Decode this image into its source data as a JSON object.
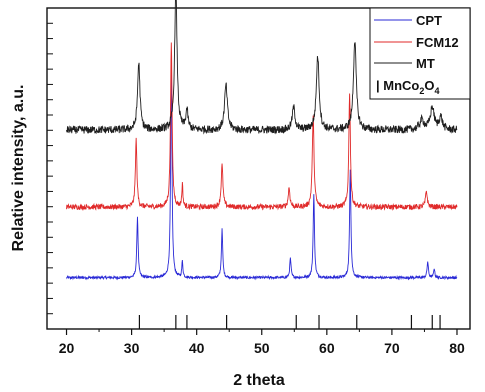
{
  "chart_data": {
    "type": "line",
    "title": "",
    "xlabel": "2 theta",
    "ylabel": "Relative intensity, a.u.",
    "xlim": [
      17,
      82
    ],
    "x_ticks": [
      20,
      30,
      40,
      50,
      60,
      70,
      80
    ],
    "y_ticks_labeled": false,
    "grid": false,
    "legend_placement": "top-right",
    "series": [
      {
        "name": "CPT",
        "color": "#2a2ad6",
        "baseline": 0.16,
        "noise": 0.004,
        "peaks": [
          [
            30.9,
            0.19,
            0.12
          ],
          [
            36.1,
            0.68,
            0.12
          ],
          [
            37.8,
            0.05,
            0.1
          ],
          [
            43.9,
            0.15,
            0.12
          ],
          [
            54.4,
            0.06,
            0.12
          ],
          [
            58.0,
            0.26,
            0.12
          ],
          [
            63.6,
            0.34,
            0.12
          ],
          [
            75.5,
            0.05,
            0.12
          ],
          [
            76.5,
            0.03,
            0.1
          ]
        ]
      },
      {
        "name": "FCM12",
        "color": "#e02a2a",
        "baseline": 0.38,
        "noise": 0.008,
        "peaks": [
          [
            30.7,
            0.21,
            0.14
          ],
          [
            36.1,
            0.52,
            0.14
          ],
          [
            37.8,
            0.07,
            0.1
          ],
          [
            43.9,
            0.13,
            0.16
          ],
          [
            54.2,
            0.06,
            0.16
          ],
          [
            57.9,
            0.28,
            0.16
          ],
          [
            63.5,
            0.36,
            0.14
          ],
          [
            75.3,
            0.05,
            0.16
          ]
        ]
      },
      {
        "name": "MT",
        "color": "#1e1e1e",
        "baseline": 0.62,
        "noise": 0.012,
        "peaks": [
          [
            31.1,
            0.21,
            0.22
          ],
          [
            36.8,
            0.44,
            0.22
          ],
          [
            38.5,
            0.06,
            0.2
          ],
          [
            44.5,
            0.14,
            0.26
          ],
          [
            54.9,
            0.07,
            0.26
          ],
          [
            58.6,
            0.23,
            0.26
          ],
          [
            64.3,
            0.28,
            0.26
          ],
          [
            74.6,
            0.03,
            0.4
          ],
          [
            76.2,
            0.07,
            0.35
          ],
          [
            77.5,
            0.04,
            0.3
          ]
        ]
      }
    ],
    "reference": {
      "name_parts": {
        "prefix": "| MnCo",
        "sub1": "2",
        "mid": "O",
        "sub2": "4"
      },
      "positions": [
        31.2,
        36.8,
        38.5,
        44.6,
        55.3,
        58.8,
        64.6,
        73.0,
        76.2,
        77.4
      ]
    }
  }
}
